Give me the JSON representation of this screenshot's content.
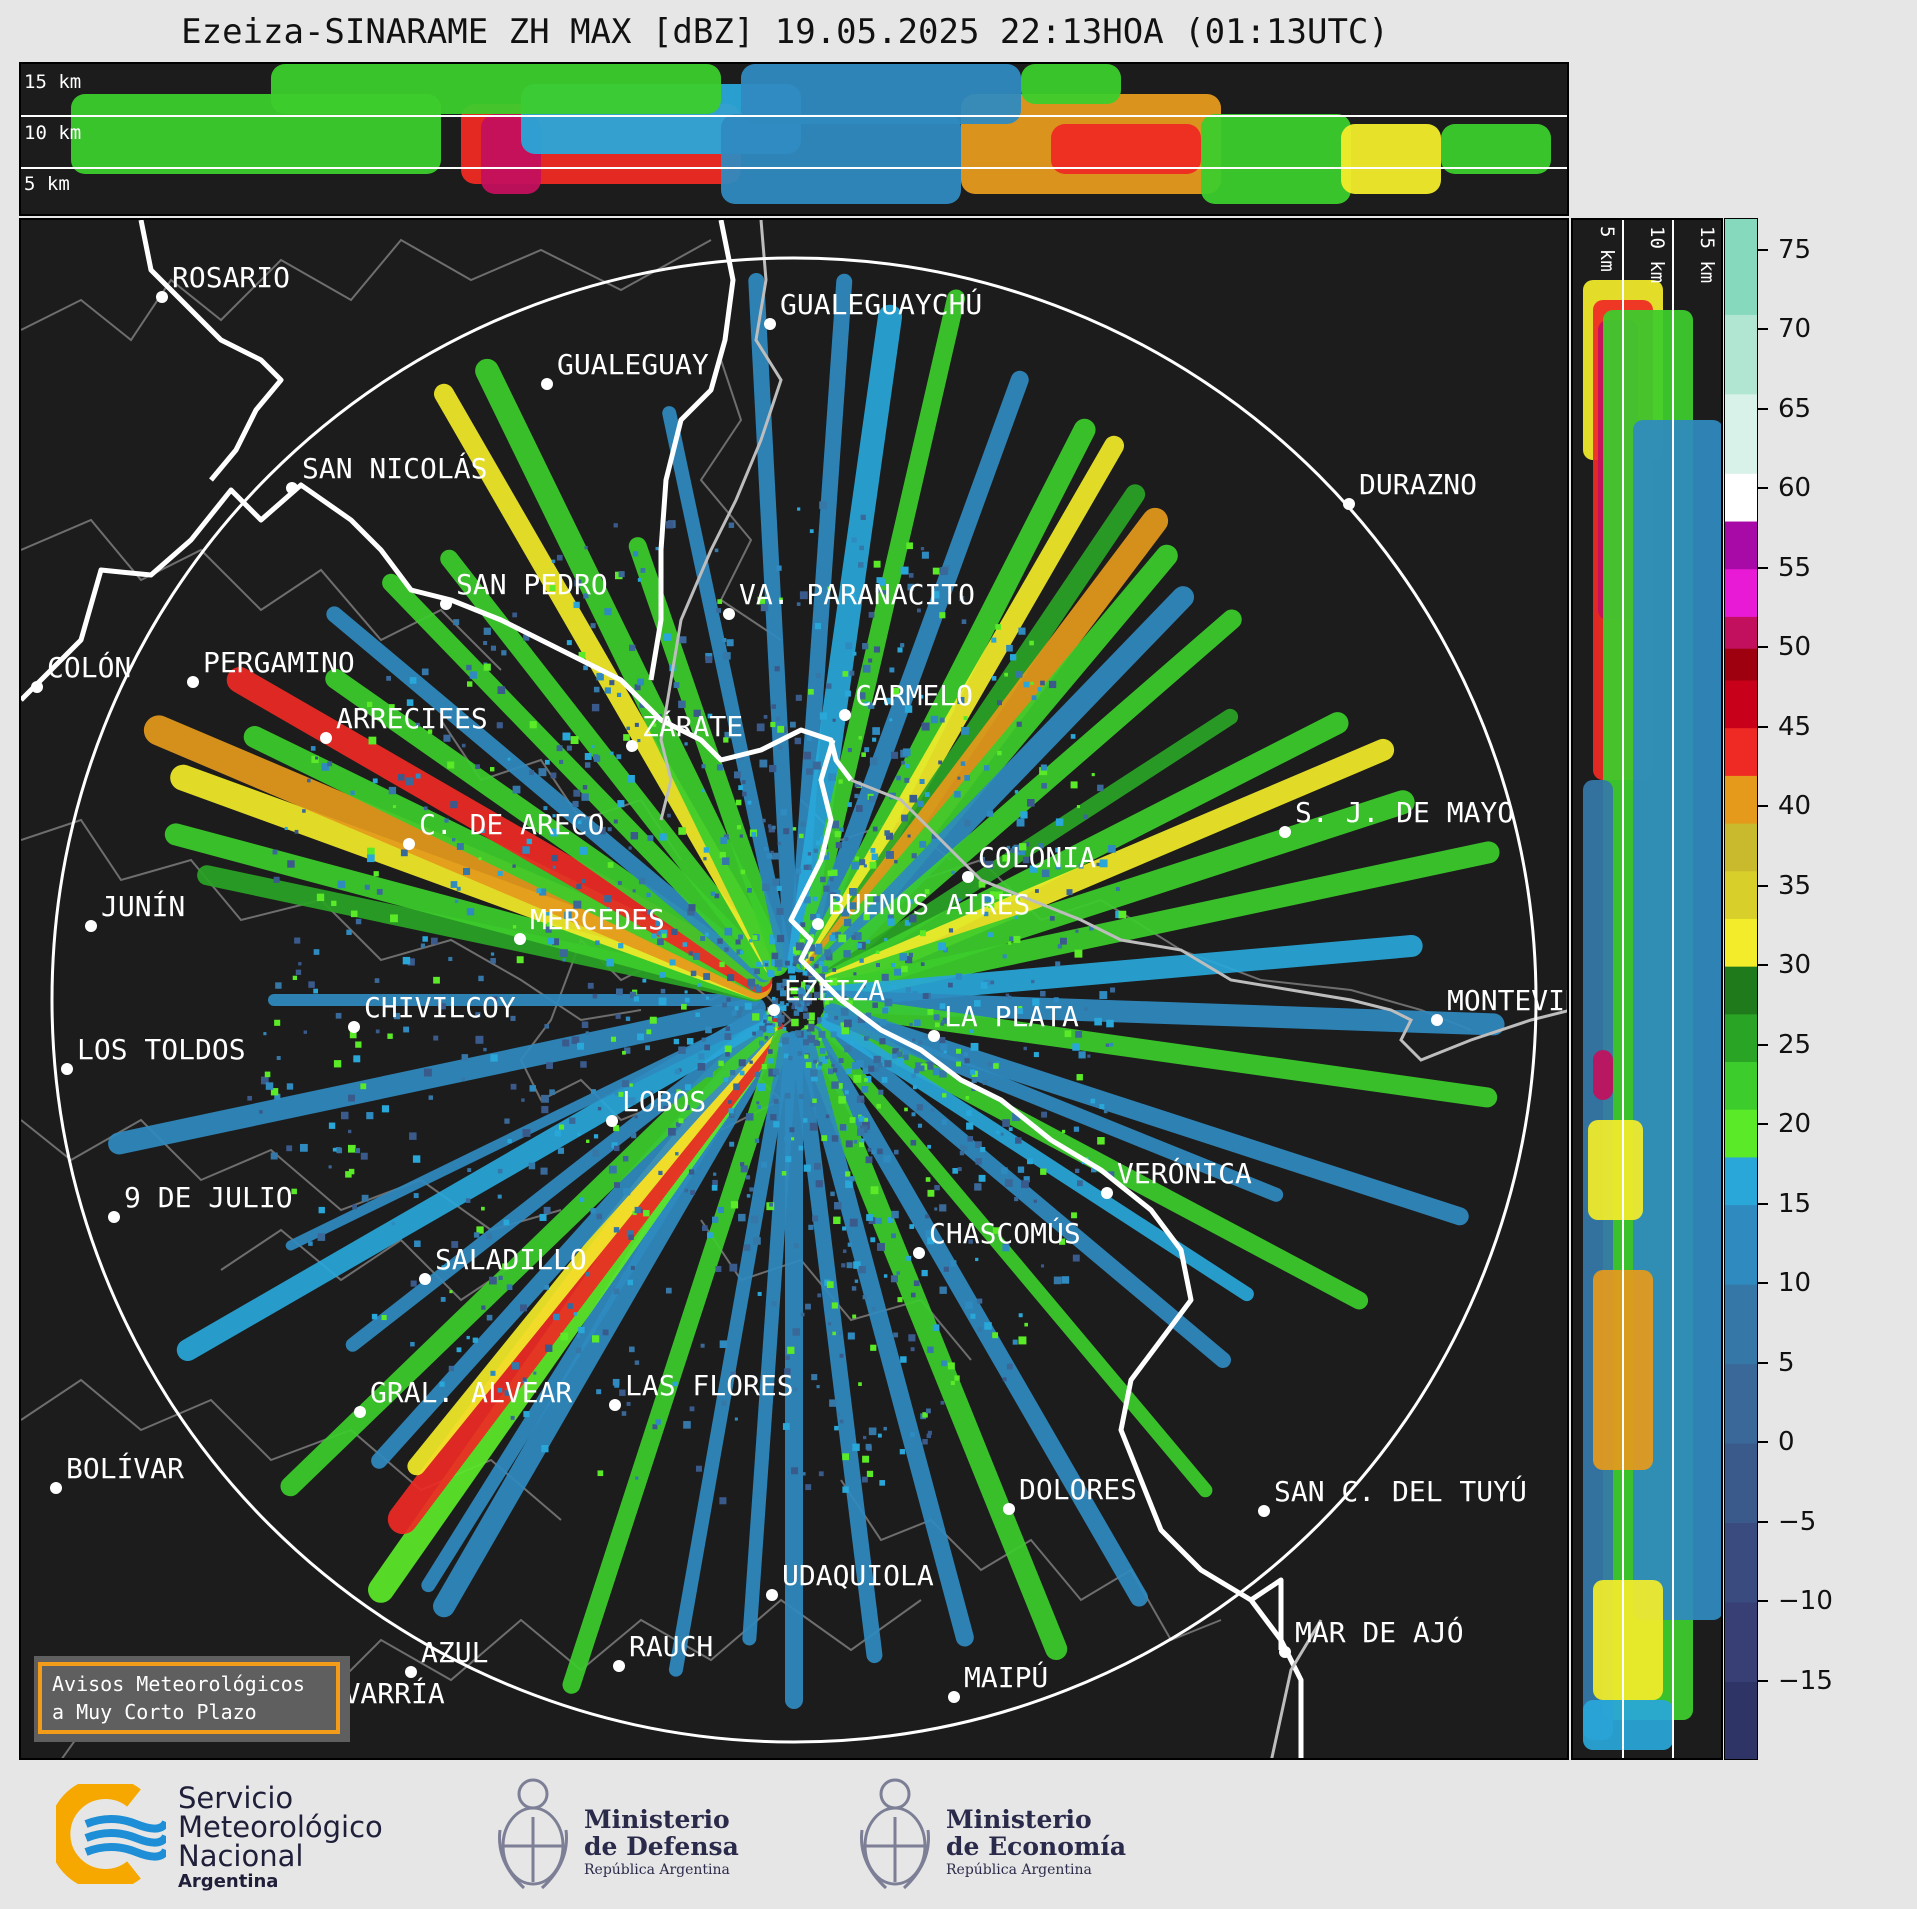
{
  "title": "Ezeiza-SINARAME ZH MAX [dBZ] 19.05.2025 22:13HOA (01:13UTC)",
  "height_labels": {
    "top": [
      "15 km",
      "10 km",
      "5 km"
    ],
    "side": [
      "5 km",
      "10 km",
      "15 km"
    ]
  },
  "cities": [
    {
      "name": "ROSARIO"
    },
    {
      "name": "GUALEGUAYCHÚ"
    },
    {
      "name": "GUALEGUAY"
    },
    {
      "name": "SAN NICOLÁS"
    },
    {
      "name": "DURAZNO"
    },
    {
      "name": "SAN PEDRO"
    },
    {
      "name": "VA. PARANACITO"
    },
    {
      "name": "COLÓN"
    },
    {
      "name": "PERGAMINO"
    },
    {
      "name": "CARMELO"
    },
    {
      "name": "ARRECIFES"
    },
    {
      "name": "ZÁRATE"
    },
    {
      "name": "S. J. DE MAYO"
    },
    {
      "name": "C. DE ARECO"
    },
    {
      "name": "COLONIA"
    },
    {
      "name": "BUENOS AIRES"
    },
    {
      "name": "JUNÍN"
    },
    {
      "name": "MERCEDES"
    },
    {
      "name": "EZEIZA"
    },
    {
      "name": "MONTEVIDEO"
    },
    {
      "name": "CHIVILCOY"
    },
    {
      "name": "LA PLATA"
    },
    {
      "name": "LOS TOLDOS"
    },
    {
      "name": "LOBOS"
    },
    {
      "name": "VERÓNICA"
    },
    {
      "name": "9 DE JULIO"
    },
    {
      "name": "CHASCOMÚS"
    },
    {
      "name": "SALADILLO"
    },
    {
      "name": "GRAL. ALVEAR"
    },
    {
      "name": "LAS FLORES"
    },
    {
      "name": "BOLÍVAR"
    },
    {
      "name": "DOLORES"
    },
    {
      "name": "SAN C. DEL TUYÚ"
    },
    {
      "name": "UDAQUIOLA"
    },
    {
      "name": "MAR DE AJÓ"
    },
    {
      "name": "AZUL"
    },
    {
      "name": "RAUCH"
    },
    {
      "name": "OLAVARRÍA"
    },
    {
      "name": "MAIPÚ"
    }
  ],
  "colorbar": {
    "unit": "dBZ",
    "range": [
      -20,
      77
    ],
    "ticks": [
      "75",
      "70",
      "65",
      "60",
      "55",
      "50",
      "45",
      "40",
      "35",
      "30",
      "25",
      "20",
      "15",
      "10",
      "5",
      "0",
      "−5",
      "−10",
      "−15"
    ],
    "tick_values": [
      75,
      70,
      65,
      60,
      55,
      50,
      45,
      40,
      35,
      30,
      25,
      20,
      15,
      10,
      5,
      0,
      -5,
      -10,
      -15
    ],
    "colors": [
      {
        "from": -20,
        "to": -15,
        "color": "#2f3466"
      },
      {
        "from": -15,
        "to": -10,
        "color": "#383f74"
      },
      {
        "from": -10,
        "to": -5,
        "color": "#3a4b80"
      },
      {
        "from": -5,
        "to": 0,
        "color": "#3a5a8c"
      },
      {
        "from": 0,
        "to": 5,
        "color": "#3a6999"
      },
      {
        "from": 5,
        "to": 10,
        "color": "#3578a8"
      },
      {
        "from": 10,
        "to": 15,
        "color": "#2f8ac0"
      },
      {
        "from": 15,
        "to": 18,
        "color": "#29a7d9"
      },
      {
        "from": 18,
        "to": 21,
        "color": "#5bea28"
      },
      {
        "from": 21,
        "to": 24,
        "color": "#3ccd2c"
      },
      {
        "from": 24,
        "to": 27,
        "color": "#2aa425"
      },
      {
        "from": 27,
        "to": 30,
        "color": "#1f7a1c"
      },
      {
        "from": 30,
        "to": 33,
        "color": "#f2ec2a"
      },
      {
        "from": 33,
        "to": 36,
        "color": "#d9cf2a"
      },
      {
        "from": 36,
        "to": 39,
        "color": "#c9b92c"
      },
      {
        "from": 39,
        "to": 42,
        "color": "#e59a1c"
      },
      {
        "from": 42,
        "to": 45,
        "color": "#ef2a24"
      },
      {
        "from": 45,
        "to": 48,
        "color": "#c8001a"
      },
      {
        "from": 48,
        "to": 50,
        "color": "#9e0010"
      },
      {
        "from": 50,
        "to": 52,
        "color": "#c3105e"
      },
      {
        "from": 52,
        "to": 55,
        "color": "#e81ad5"
      },
      {
        "from": 55,
        "to": 58,
        "color": "#a80aa8"
      },
      {
        "from": 58,
        "to": 61,
        "color": "#ffffff"
      },
      {
        "from": 61,
        "to": 66,
        "color": "#d8f2ea"
      },
      {
        "from": 66,
        "to": 71,
        "color": "#b0e6d2"
      },
      {
        "from": 71,
        "to": 77,
        "color": "#86d9bd"
      }
    ]
  },
  "badge": {
    "line1": "Avisos Meteorológicos",
    "line2": "a Muy Corto Plazo"
  },
  "logos": {
    "smn": {
      "line1": "Servicio",
      "line2": "Meteorológico",
      "line3": "Nacional",
      "line4": "Argentina"
    },
    "defensa": {
      "line1": "Ministerio",
      "line2": "de Defensa",
      "line3": "República Argentina"
    },
    "economia": {
      "line1": "Ministerio",
      "line2": "de Economía",
      "line3": "República Argentina"
    }
  }
}
